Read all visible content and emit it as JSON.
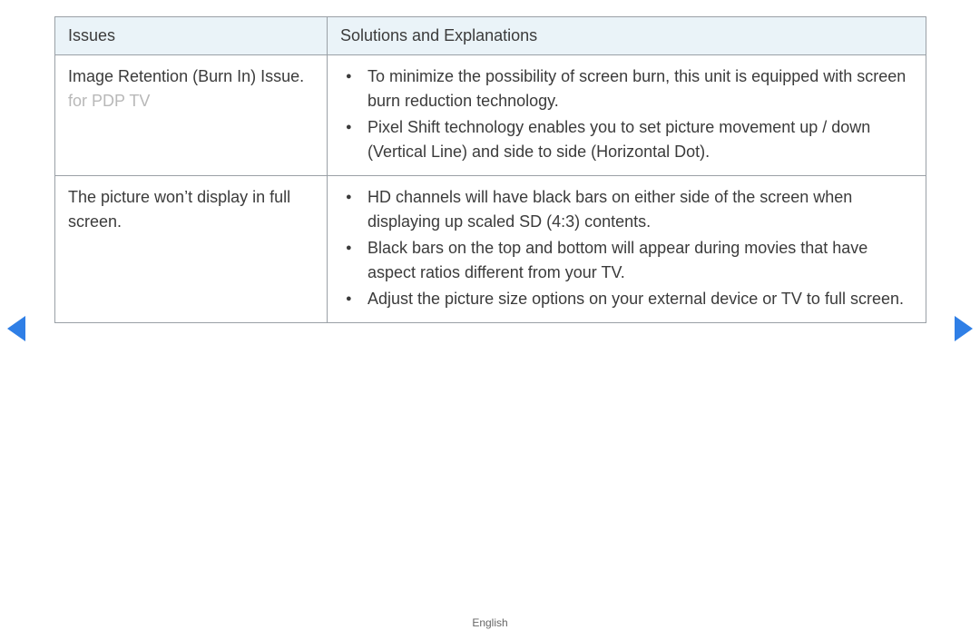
{
  "colors": {
    "header_bg": "#eaf3f8",
    "header_text": "#3b3b3b",
    "border": "#9aa0a6",
    "body_text": "#3b3b3b",
    "muted_text": "#b8b8b8",
    "arrow": "#2f7fe6",
    "background": "#ffffff"
  },
  "table": {
    "columns": {
      "issues": "Issues",
      "solutions": "Solutions and Explanations"
    },
    "rows": [
      {
        "issue_main": "Image Retention (Burn In) Issue.",
        "issue_note": "  for PDP TV",
        "solutions": [
          "To minimize the possibility of screen burn, this unit is equipped with screen burn reduction technology.",
          "Pixel Shift technology enables you to set picture movement up / down (Vertical Line) and side to side (Horizontal Dot)."
        ]
      },
      {
        "issue_main": "The picture won’t display in full screen.",
        "issue_note": "",
        "solutions": [
          "HD channels will have black bars on either side of the screen when displaying up scaled SD (4:3) contents.",
          "Black bars on the top and bottom will appear during movies that have aspect ratios different from your TV.",
          "Adjust the picture size options on your external device or TV to full screen."
        ]
      }
    ]
  },
  "footer": {
    "language": "English"
  }
}
